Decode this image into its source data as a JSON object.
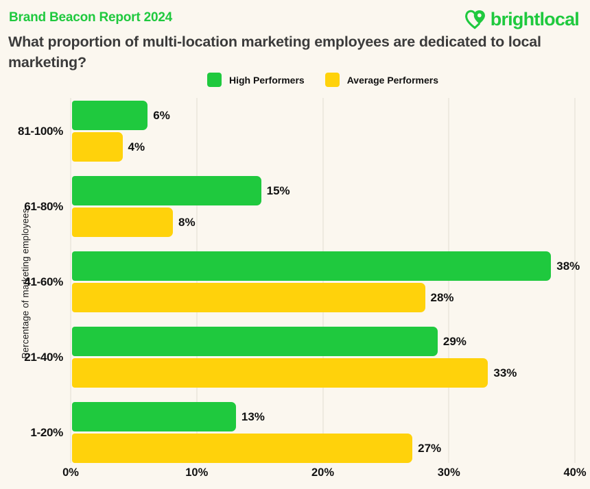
{
  "header": {
    "report_label": "Brand Beacon Report 2024",
    "logo_text": "brightlocal"
  },
  "colors": {
    "green": "#1FC93E",
    "yellow": "#FFD20B",
    "background": "#FBF7EF",
    "gridline": "#EEEAE0",
    "title_text": "#3B3B3B",
    "label_text": "#111111"
  },
  "chart_data": {
    "type": "bar",
    "orientation": "horizontal",
    "title": "What proportion of multi-location marketing employees are dedicated to local marketing?",
    "ylabel": "Percentage of marketing employees",
    "categories": [
      "81-100%",
      "61-80%",
      "41-60%",
      "21-40%",
      "1-20%"
    ],
    "series": [
      {
        "name": "High Performers",
        "color": "#1FC93E",
        "values": [
          6,
          15,
          38,
          29,
          13
        ]
      },
      {
        "name": "Average Performers",
        "color": "#FFD20B",
        "values": [
          4,
          8,
          28,
          33,
          27
        ]
      }
    ],
    "value_suffix": "%",
    "xlim": [
      0,
      40
    ],
    "x_ticks": [
      "0%",
      "10%",
      "20%",
      "30%",
      "40%"
    ],
    "grid": true,
    "legend_position": "top"
  }
}
